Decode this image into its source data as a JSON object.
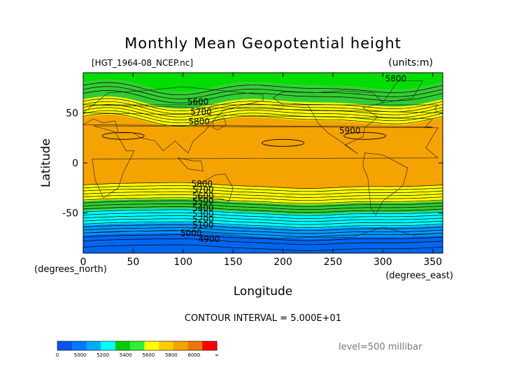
{
  "chart_data": {
    "type": "heatmap",
    "title": "Monthly Mean Geopotential height",
    "source_label": "[HGT_1964-08_NCEP.nc]",
    "units_label": "(units:m)",
    "xlabel": "Longitude",
    "ylabel": "Latitude",
    "x_unit_label": "(degrees_east)",
    "y_unit_label": "(degrees_north)",
    "xlim": [
      0,
      360
    ],
    "ylim": [
      -90,
      90
    ],
    "x_ticks": [
      0,
      50,
      100,
      150,
      200,
      250,
      300,
      350
    ],
    "y_ticks": [
      50,
      0,
      -50
    ],
    "contour_interval_label": "CONTOUR INTERVAL = 5.000E+01",
    "level_label": "level=500 millibar",
    "contour_interval": 50,
    "bands": [
      {
        "lat_top": 90,
        "lat_bottom": 77,
        "color": "#00dd00",
        "range": "5400-5600"
      },
      {
        "lat_top": 77,
        "lat_bottom": 60,
        "color": "#33cc33",
        "range": "5400-5600"
      },
      {
        "lat_top": 60,
        "lat_bottom": 42,
        "color": "#ffff00",
        "range": "5600-5800"
      },
      {
        "lat_top": 42,
        "lat_bottom": -22,
        "color": "#f5a300",
        "range": "5800-6000"
      },
      {
        "lat_top": -22,
        "lat_bottom": -38,
        "color": "#ffff00",
        "range": "5600-5800"
      },
      {
        "lat_top": -38,
        "lat_bottom": -48,
        "color": "#33cc33",
        "range": "5400-5600"
      },
      {
        "lat_top": -48,
        "lat_bottom": -62,
        "color": "#00ffff",
        "range": "5200-5400"
      },
      {
        "lat_top": -62,
        "lat_bottom": -72,
        "color": "#0099ff",
        "range": "5000-5200"
      },
      {
        "lat_top": -72,
        "lat_bottom": -90,
        "color": "#0066ee",
        "range": "4800-5000"
      }
    ],
    "contour_labels": [
      {
        "text": "5800",
        "lon": 313,
        "lat": 84
      },
      {
        "text": "5600",
        "lon": 115,
        "lat": 61
      },
      {
        "text": "5700",
        "lon": 118,
        "lat": 51
      },
      {
        "text": "5800",
        "lon": 116,
        "lat": 41
      },
      {
        "text": "5900",
        "lon": 267,
        "lat": 32
      },
      {
        "text": "5800",
        "lon": 119,
        "lat": -21
      },
      {
        "text": "5700",
        "lon": 120,
        "lat": -27
      },
      {
        "text": "5600",
        "lon": 120,
        "lat": -33
      },
      {
        "text": "5500",
        "lon": 120,
        "lat": -38
      },
      {
        "text": "5400",
        "lon": 120,
        "lat": -45
      },
      {
        "text": "5300",
        "lon": 120,
        "lat": -51
      },
      {
        "text": "5200",
        "lon": 120,
        "lat": -56
      },
      {
        "text": "5100",
        "lon": 120,
        "lat": -62
      },
      {
        "text": "5000",
        "lon": 108,
        "lat": -70
      },
      {
        "text": "4900",
        "lon": 126,
        "lat": -76
      }
    ],
    "colorbar": {
      "colors": [
        "#0055ee",
        "#0077ff",
        "#00aaff",
        "#00ffff",
        "#00cc00",
        "#33ee33",
        "#ffff00",
        "#ffcc00",
        "#f5a300",
        "#ee7700",
        "#ff0000"
      ],
      "tick_labels": [
        "0",
        "5000",
        "5200",
        "5400",
        "5600",
        "5800",
        "6000",
        "∞"
      ]
    }
  }
}
